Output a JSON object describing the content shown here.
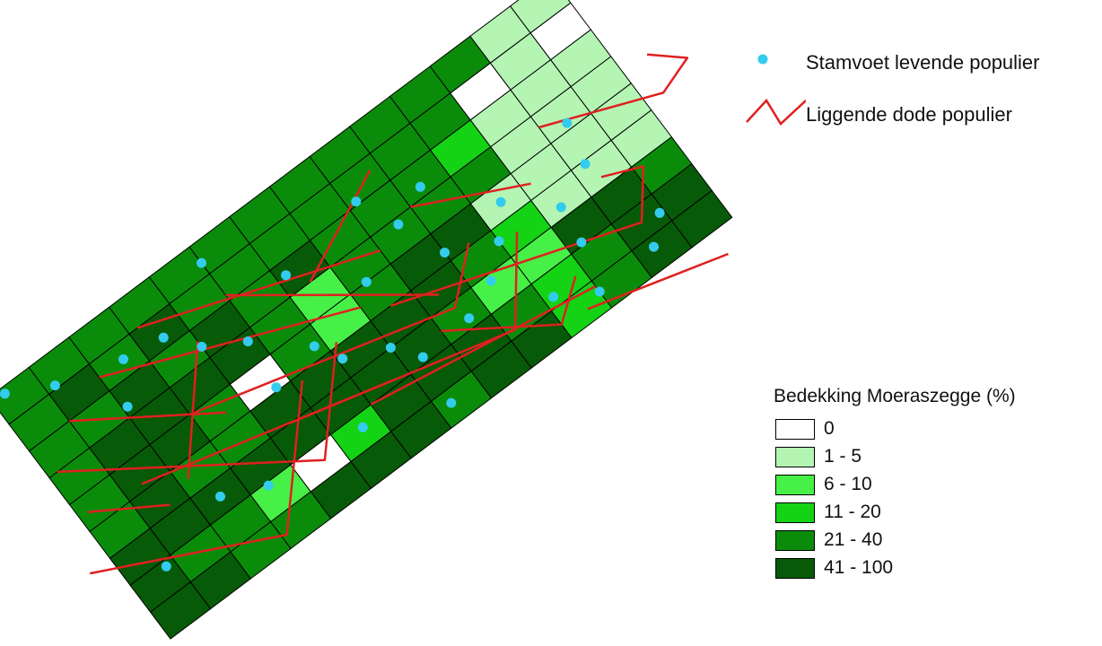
{
  "legend_points": {
    "point_label": "Stamvoet levende populier",
    "line_label": "Liggende dode populier",
    "point_color": "#33ccee",
    "line_color": "#e02020"
  },
  "legend_cover": {
    "title": "Bedekking Moeraszegge (%)",
    "classes": [
      {
        "label": "0",
        "color": "#ffffff"
      },
      {
        "label": "1 - 5",
        "color": "#b4f5b4"
      },
      {
        "label": "6 - 10",
        "color": "#46f046"
      },
      {
        "label": "11 - 20",
        "color": "#14d214"
      },
      {
        "label": "21 - 40",
        "color": "#0a8c0a"
      },
      {
        "label": "41 - 100",
        "color": "#075a07"
      }
    ]
  },
  "grid": {
    "rows": 9,
    "cols": 14,
    "cells": [
      [
        5,
        5,
        4,
        4,
        5,
        5,
        5,
        4,
        5,
        5,
        3,
        4,
        5,
        5
      ],
      [
        5,
        4,
        4,
        2,
        0,
        3,
        5,
        5,
        5,
        4,
        3,
        4,
        5,
        5
      ],
      [
        5,
        5,
        5,
        5,
        5,
        5,
        5,
        5,
        4,
        2,
        2,
        5,
        5,
        4
      ],
      [
        4,
        5,
        4,
        4,
        5,
        5,
        5,
        5,
        5,
        4,
        3,
        1,
        1,
        1
      ],
      [
        4,
        5,
        5,
        4,
        0,
        4,
        2,
        4,
        5,
        5,
        1,
        1,
        1,
        1
      ],
      [
        4,
        5,
        5,
        5,
        5,
        4,
        2,
        4,
        4,
        4,
        4,
        1,
        1,
        1
      ],
      [
        4,
        4,
        5,
        4,
        5,
        4,
        5,
        4,
        4,
        4,
        3,
        1,
        1,
        1
      ],
      [
        4,
        5,
        4,
        5,
        4,
        4,
        4,
        4,
        4,
        4,
        4,
        0,
        1,
        0
      ],
      [
        4,
        4,
        4,
        4,
        4,
        4,
        4,
        4,
        4,
        4,
        4,
        4,
        1,
        1
      ]
    ]
  },
  "living_poplars": [
    [
      0.3,
      8.8
    ],
    [
      1.2,
      8.1
    ],
    [
      2.6,
      7.5
    ],
    [
      2.1,
      6.3
    ],
    [
      3.5,
      7.3
    ],
    [
      5.0,
      8.4
    ],
    [
      4.0,
      6.4
    ],
    [
      4.8,
      5.7
    ],
    [
      6.2,
      6.6
    ],
    [
      5.8,
      4.4
    ],
    [
      7.4,
      5.0
    ],
    [
      8.6,
      5.8
    ],
    [
      6.1,
      3.6
    ],
    [
      7.0,
      3.0
    ],
    [
      7.4,
      2.2
    ],
    [
      8.6,
      2.3
    ],
    [
      9.4,
      2.8
    ],
    [
      10.2,
      1.3
    ],
    [
      11.3,
      2.1
    ],
    [
      11.0,
      0.6
    ],
    [
      12.4,
      0.7
    ],
    [
      10.5,
      4.5
    ],
    [
      11.4,
      3.3
    ],
    [
      12.3,
      3.9
    ],
    [
      9.0,
      4.3
    ],
    [
      10.0,
      3.6
    ],
    [
      8.2,
      7.1
    ],
    [
      9.4,
      6.3
    ],
    [
      3.4,
      1.9
    ],
    [
      5.6,
      1.6
    ],
    [
      7.3,
      0.6
    ],
    [
      4.7,
      4.1
    ],
    [
      0.8,
      1.8
    ],
    [
      2.5,
      2.5
    ],
    [
      12.9,
      1.4
    ],
    [
      12.5,
      5.2
    ]
  ],
  "dead_poplars": [
    [
      [
        -0.5,
        3.0
      ],
      [
        3.1,
        0.4
      ],
      [
        5.2,
        3.8
      ]
    ],
    [
      [
        0.2,
        6.0
      ],
      [
        4.6,
        1.5
      ],
      [
        6.2,
        4.1
      ]
    ],
    [
      [
        1.4,
        4.2
      ],
      [
        6.6,
        2.2
      ]
    ],
    [
      [
        2.0,
        7.5
      ],
      [
        7.0,
        4.5
      ]
    ],
    [
      [
        3.0,
        5.0
      ],
      [
        8.5,
        2.8
      ],
      [
        9.5,
        4.1
      ]
    ],
    [
      [
        3.2,
        8.0
      ],
      [
        8.0,
        5.5
      ]
    ],
    [
      [
        4.5,
        3.0
      ],
      [
        9.2,
        1.2
      ],
      [
        10.4,
        3.5
      ]
    ],
    [
      [
        6.0,
        2.0
      ],
      [
        11.0,
        0.8
      ]
    ],
    [
      [
        7.5,
        4.0
      ],
      [
        12.5,
        1.5
      ],
      [
        13.2,
        2.8
      ],
      [
        12.4,
        3.3
      ]
    ],
    [
      [
        10.6,
        0.4
      ],
      [
        13.5,
        -0.8
      ]
    ],
    [
      [
        12.0,
        5.6
      ],
      [
        14.4,
        4.2
      ],
      [
        15.2,
        4.6
      ],
      [
        14.6,
        5.4
      ]
    ],
    [
      [
        1.0,
        7.0
      ],
      [
        3.6,
        4.4
      ]
    ],
    [
      [
        5.0,
        7.2
      ],
      [
        8.4,
        3.4
      ]
    ],
    [
      [
        9.0,
        6.0
      ],
      [
        11.2,
        4.4
      ]
    ],
    [
      [
        8.0,
        2.5
      ],
      [
        10.0,
        0.5
      ],
      [
        10.8,
        1.4
      ]
    ],
    [
      [
        2.2,
        3.5
      ],
      [
        4.0,
        6.6
      ]
    ],
    [
      [
        6.5,
        6.0
      ],
      [
        8.8,
        7.6
      ]
    ],
    [
      [
        0.2,
        4.5
      ],
      [
        1.6,
        3.2
      ]
    ]
  ]
}
